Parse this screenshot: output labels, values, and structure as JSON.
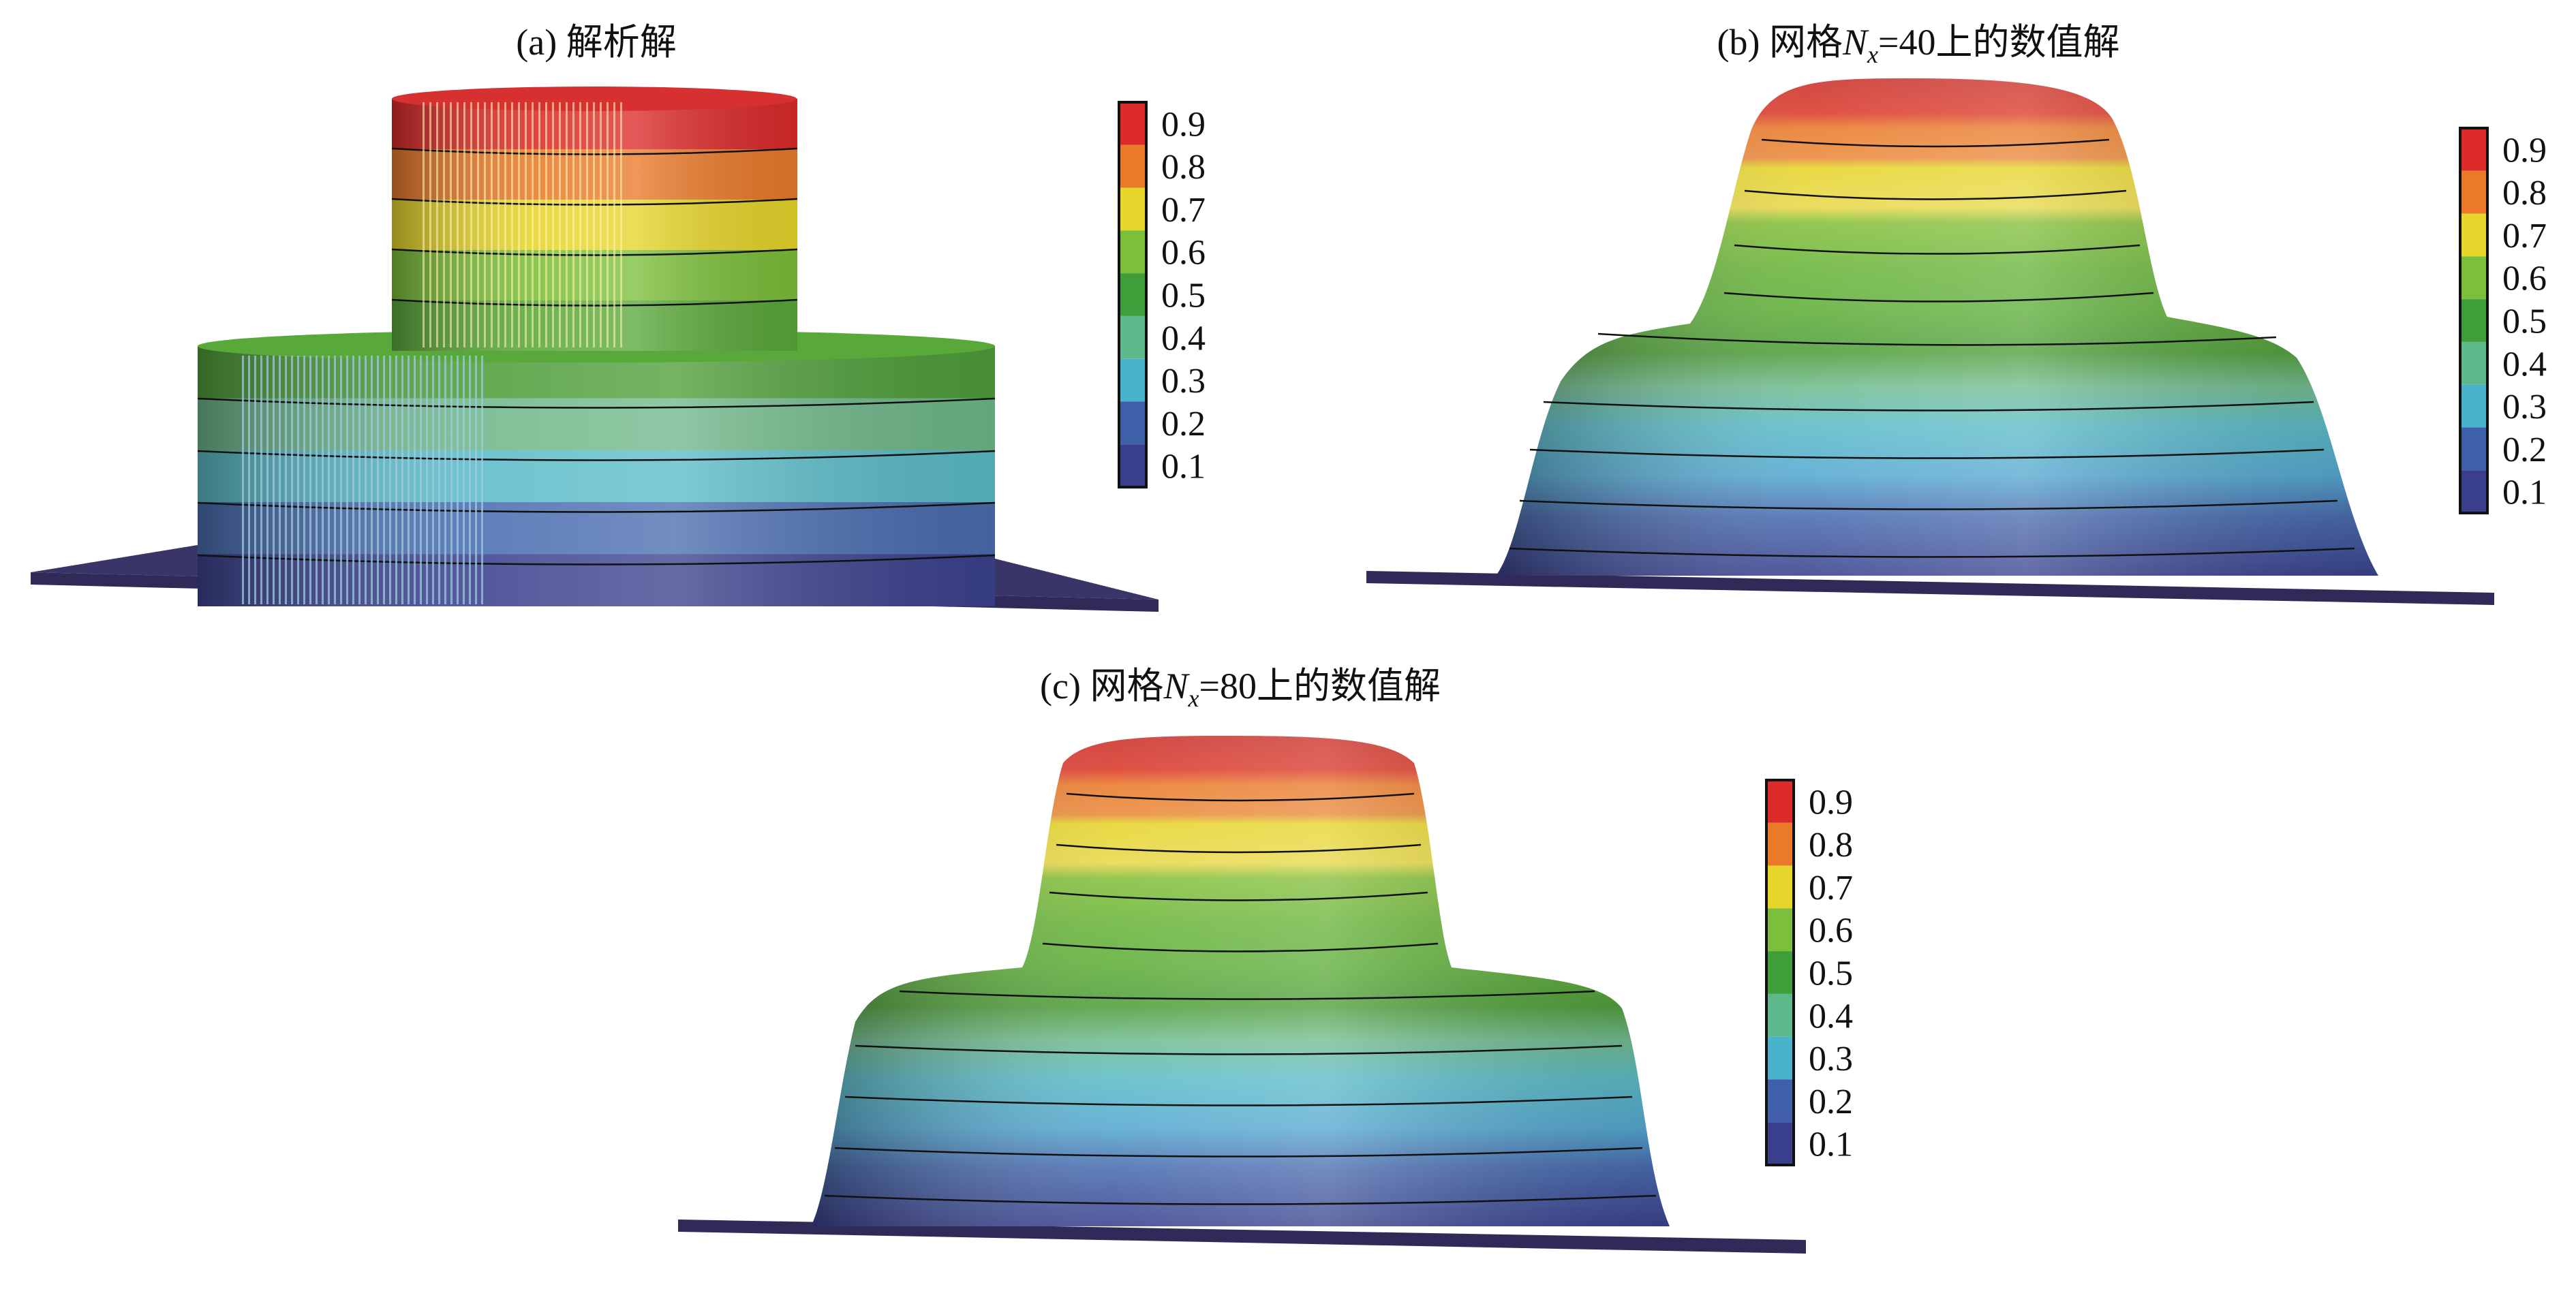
{
  "panels": [
    {
      "id": "a",
      "caption_prefix": "(a)",
      "caption_text": "解析解",
      "caption_var": "",
      "caption_sub": "",
      "caption_tail": ""
    },
    {
      "id": "b",
      "caption_prefix": "(b)",
      "caption_text": "网格",
      "caption_var": "N",
      "caption_sub": "x",
      "caption_tail": "=40上的数值解"
    },
    {
      "id": "c",
      "caption_prefix": "(c)",
      "caption_text": "网格",
      "caption_var": "N",
      "caption_sub": "x",
      "caption_tail": "=80上的数值解"
    }
  ],
  "colorbar": {
    "levels": [
      "0.1",
      "0.2",
      "0.3",
      "0.4",
      "0.5",
      "0.6",
      "0.7",
      "0.8",
      "0.9"
    ],
    "colors": [
      "#3a3f8c",
      "#3f5fa8",
      "#49b3cc",
      "#5db98c",
      "#3f9e3a",
      "#7cbf3a",
      "#e6d52a",
      "#ea7a2a",
      "#dc2a2a"
    ]
  }
}
